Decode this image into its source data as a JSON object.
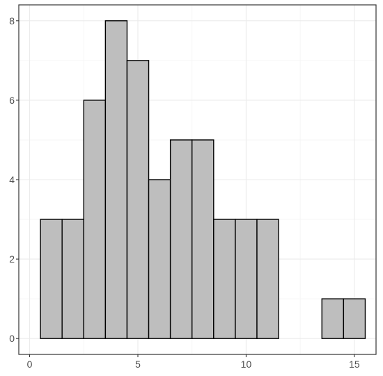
{
  "chart_data": {
    "type": "bar",
    "subtype": "histogram",
    "bins": [
      {
        "x": 1,
        "count": 3
      },
      {
        "x": 2,
        "count": 3
      },
      {
        "x": 3,
        "count": 6
      },
      {
        "x": 4,
        "count": 8
      },
      {
        "x": 5,
        "count": 7
      },
      {
        "x": 6,
        "count": 4
      },
      {
        "x": 7,
        "count": 5
      },
      {
        "x": 8,
        "count": 5
      },
      {
        "x": 9,
        "count": 3
      },
      {
        "x": 10,
        "count": 3
      },
      {
        "x": 11,
        "count": 3
      },
      {
        "x": 12,
        "count": 0
      },
      {
        "x": 13,
        "count": 0
      },
      {
        "x": 14,
        "count": 1
      },
      {
        "x": 15,
        "count": 1
      }
    ],
    "bin_width": 1,
    "xlim": [
      -0.5,
      16
    ],
    "ylim": [
      -0.4,
      8.4
    ],
    "x_ticks": [
      "0",
      "5",
      "10",
      "15"
    ],
    "y_ticks": [
      "0",
      "2",
      "4",
      "6",
      "8"
    ],
    "title": "",
    "xlabel": "",
    "ylabel": "",
    "grid": true,
    "colors": {
      "bar_fill": "#bebebe",
      "bar_stroke": "#000000",
      "grid_major": "#ebebeb",
      "grid_minor": "#f5f5f5",
      "panel_border": "#333333",
      "tick_text": "#4d4d4d"
    }
  }
}
